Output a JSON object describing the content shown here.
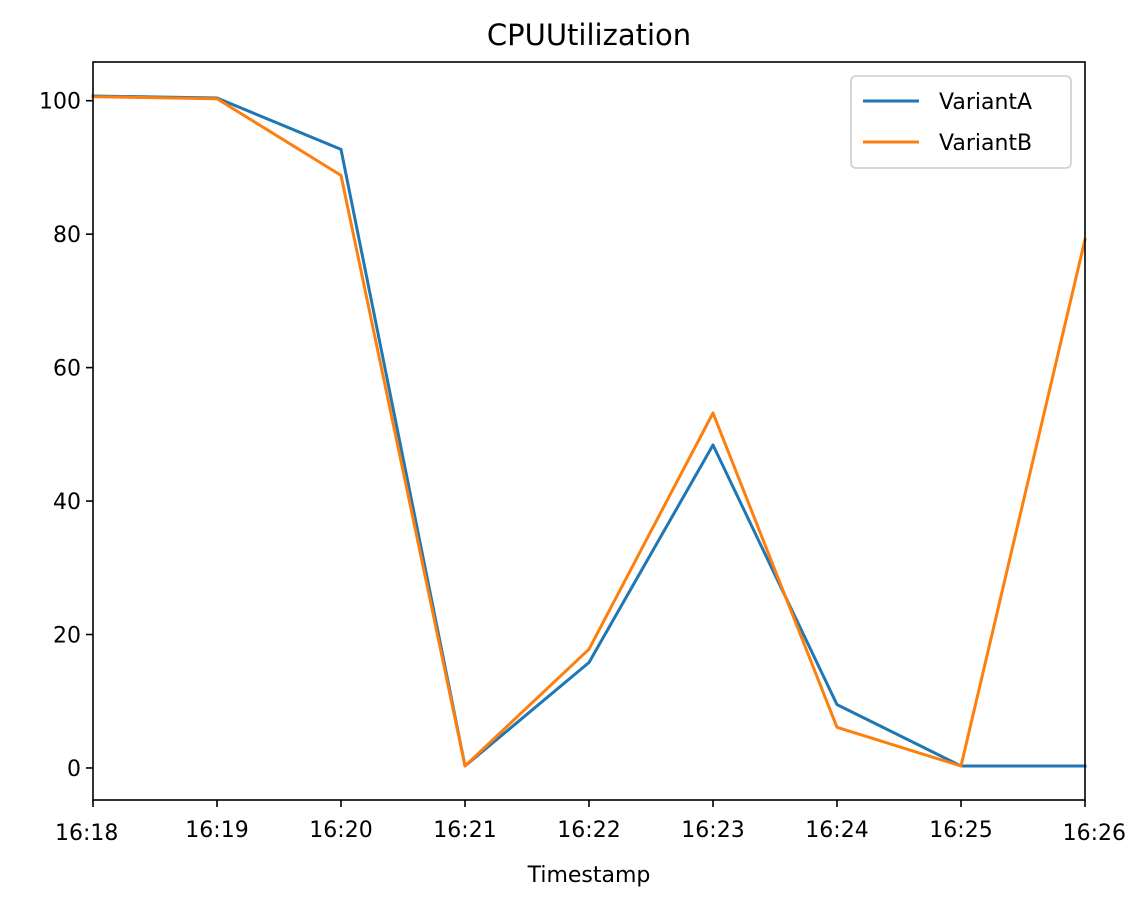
{
  "chart_data": {
    "type": "line",
    "title": "CPUUtilization",
    "xlabel": "Timestamp",
    "ylabel": "",
    "x": [
      "16:18",
      "16:19",
      "16:20",
      "16:21",
      "16:22",
      "16:23",
      "16:24",
      "16:25",
      "16:26"
    ],
    "ylim": [
      -4.8,
      105.8
    ],
    "yticks": [
      0,
      20,
      40,
      60,
      80,
      100
    ],
    "grid": false,
    "legend_position": "top-right",
    "series": [
      {
        "name": "VariantA",
        "color": "#1f77b4",
        "values": [
          100.7,
          100.4,
          92.7,
          0.3,
          15.8,
          48.4,
          9.5,
          0.3,
          0.3
        ]
      },
      {
        "name": "VariantB",
        "color": "#ff7f0e",
        "values": [
          100.6,
          100.3,
          88.8,
          0.3,
          17.8,
          53.2,
          6.1,
          0.3,
          79.2
        ]
      }
    ]
  }
}
